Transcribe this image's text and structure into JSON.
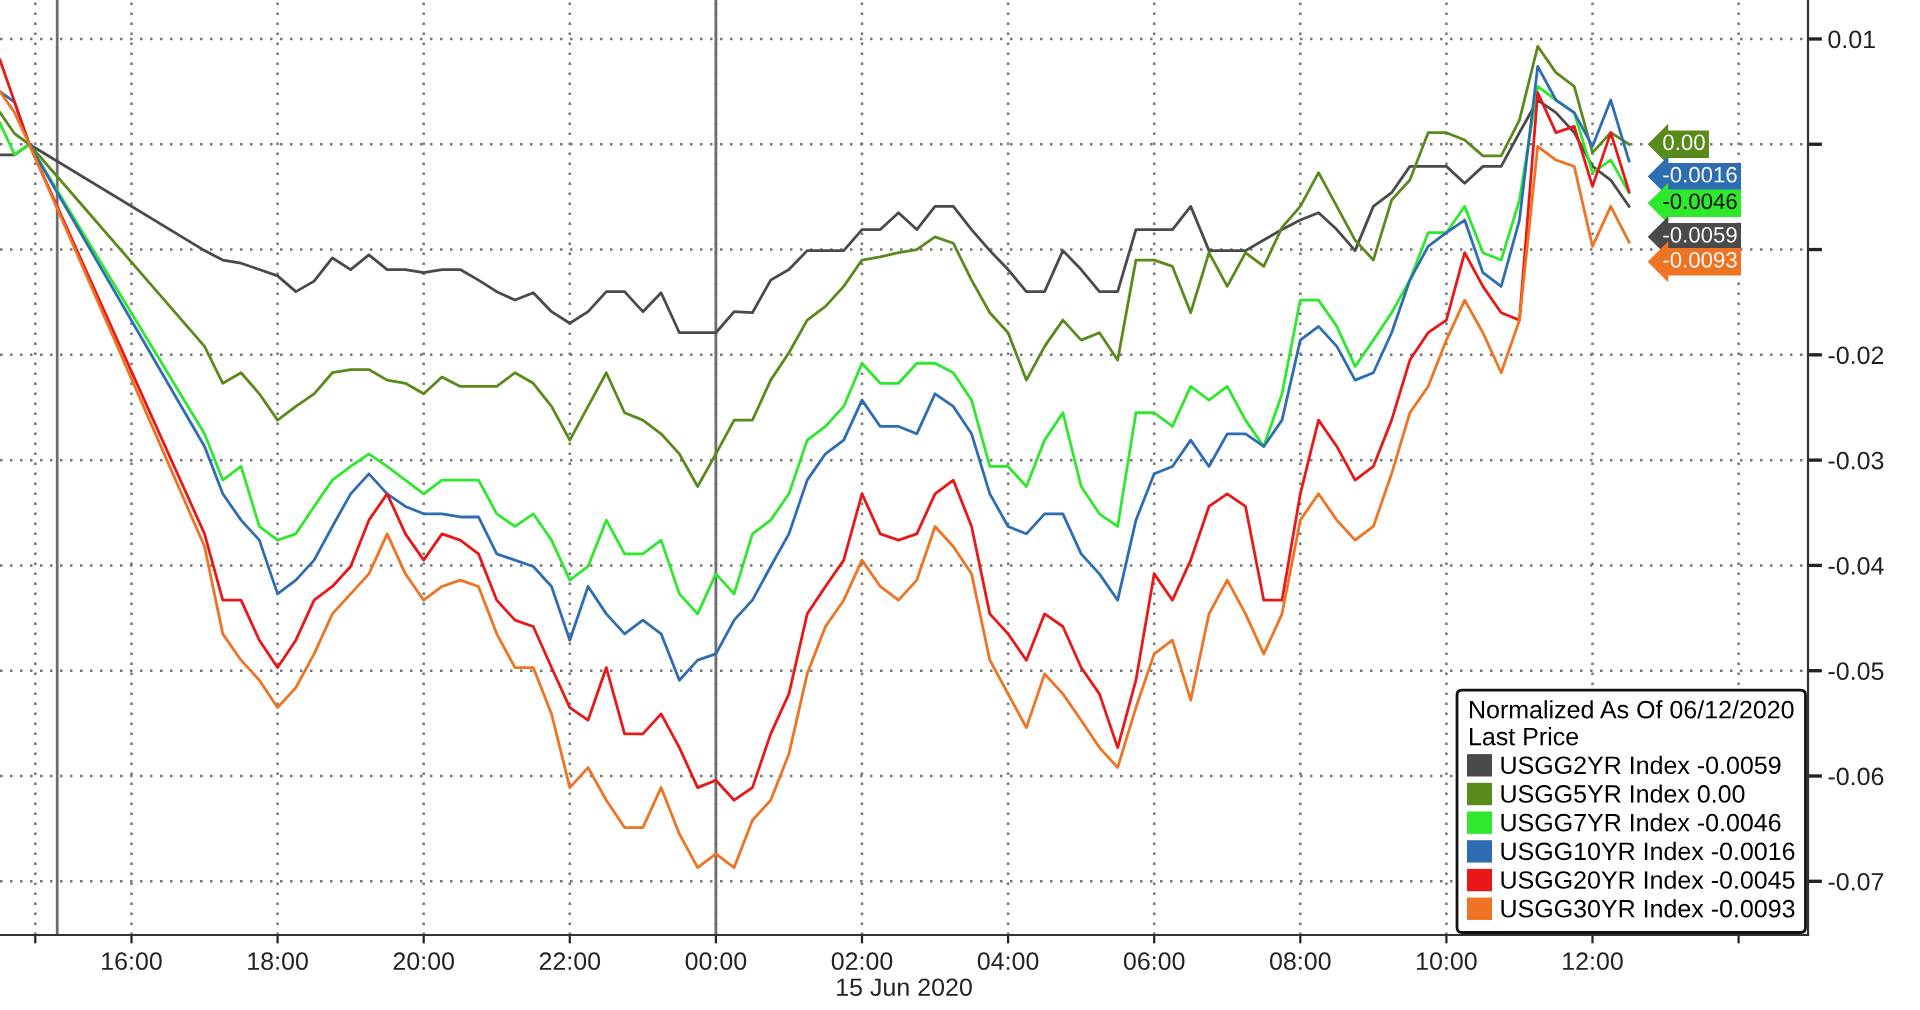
{
  "chart_data": {
    "type": "line",
    "xlabel": "15 Jun 2020",
    "legend_title": "Normalized As Of 06/12/2020\nLast Price",
    "x": [
      "2020-06-14T14:12",
      "2020-06-14T14:24",
      "2020-06-14T14:36",
      "2020-06-14T17:00",
      "2020-06-14T17:15",
      "2020-06-14T17:30",
      "2020-06-14T17:45",
      "2020-06-14T18:00",
      "2020-06-14T18:15",
      "2020-06-14T18:30",
      "2020-06-14T18:45",
      "2020-06-14T19:00",
      "2020-06-14T19:15",
      "2020-06-14T19:30",
      "2020-06-14T19:45",
      "2020-06-14T20:00",
      "2020-06-14T20:15",
      "2020-06-14T20:30",
      "2020-06-14T20:45",
      "2020-06-14T21:00",
      "2020-06-14T21:15",
      "2020-06-14T21:30",
      "2020-06-14T21:45",
      "2020-06-14T22:00",
      "2020-06-14T22:15",
      "2020-06-14T22:30",
      "2020-06-14T22:45",
      "2020-06-14T23:00",
      "2020-06-14T23:15",
      "2020-06-14T23:30",
      "2020-06-14T23:45",
      "2020-06-15T00:00",
      "2020-06-15T00:15",
      "2020-06-15T00:30",
      "2020-06-15T00:45",
      "2020-06-15T01:00",
      "2020-06-15T01:15",
      "2020-06-15T01:30",
      "2020-06-15T01:45",
      "2020-06-15T02:00",
      "2020-06-15T02:15",
      "2020-06-15T02:30",
      "2020-06-15T02:45",
      "2020-06-15T03:00",
      "2020-06-15T03:15",
      "2020-06-15T03:30",
      "2020-06-15T03:45",
      "2020-06-15T04:00",
      "2020-06-15T04:15",
      "2020-06-15T04:30",
      "2020-06-15T04:45",
      "2020-06-15T05:00",
      "2020-06-15T05:15",
      "2020-06-15T05:30",
      "2020-06-15T05:45",
      "2020-06-15T06:00",
      "2020-06-15T06:15",
      "2020-06-15T06:30",
      "2020-06-15T06:45",
      "2020-06-15T07:00",
      "2020-06-15T07:15",
      "2020-06-15T07:30",
      "2020-06-15T07:45",
      "2020-06-15T08:00",
      "2020-06-15T08:15",
      "2020-06-15T08:30",
      "2020-06-15T08:45",
      "2020-06-15T09:00",
      "2020-06-15T09:15",
      "2020-06-15T09:30",
      "2020-06-15T09:45",
      "2020-06-15T10:00",
      "2020-06-15T10:15",
      "2020-06-15T10:30",
      "2020-06-15T10:45",
      "2020-06-15T11:00",
      "2020-06-15T11:15",
      "2020-06-15T11:30",
      "2020-06-15T11:45",
      "2020-06-15T12:00",
      "2020-06-15T12:15",
      "2020-06-15T12:30"
    ],
    "series": [
      {
        "name": "USGG2YR Index -0.0059",
        "color": "#4a4a4a",
        "values": [
          -0.001,
          -0.001,
          0,
          -0.0101,
          -0.011,
          -0.0113,
          -0.0119,
          -0.0125,
          -0.014,
          -0.013,
          -0.0108,
          -0.0119,
          -0.0105,
          -0.0119,
          -0.0119,
          -0.0122,
          -0.0119,
          -0.0119,
          -0.0129,
          -0.014,
          -0.0148,
          -0.0141,
          -0.0159,
          -0.017,
          -0.0159,
          -0.014,
          -0.014,
          -0.0159,
          -0.0141,
          -0.0179,
          -0.0179,
          -0.0179,
          -0.0159,
          -0.016,
          -0.0129,
          -0.0119,
          -0.0101,
          -0.0101,
          -0.0101,
          -0.0081,
          -0.0081,
          -0.0065,
          -0.0081,
          -0.0059,
          -0.0059,
          -0.0081,
          -0.0101,
          -0.0119,
          -0.014,
          -0.014,
          -0.0101,
          -0.0119,
          -0.014,
          -0.014,
          -0.0081,
          -0.0081,
          -0.0081,
          -0.0059,
          -0.0101,
          -0.0101,
          -0.0101,
          -0.0091,
          -0.0081,
          -0.0072,
          -0.0065,
          -0.0081,
          -0.0101,
          -0.0059,
          -0.0046,
          -0.0021,
          -0.0021,
          -0.0021,
          -0.0037,
          -0.0021,
          -0.0021,
          0.0011,
          0.0042,
          0.003,
          0.0011,
          -0.0021,
          -0.0034,
          -0.0059
        ],
        "value_labels": [
          null,
          null,
          null,
          null,
          null,
          null,
          null,
          null,
          null,
          null,
          null,
          null,
          null,
          null,
          null,
          null,
          null,
          null,
          null,
          null,
          null,
          null,
          null,
          null,
          null,
          null,
          null,
          null,
          null,
          null,
          null,
          null,
          null,
          null,
          null,
          null,
          null,
          null,
          null,
          null,
          null,
          null,
          null,
          null,
          null,
          null,
          null,
          null,
          null,
          null,
          null,
          null,
          null,
          null,
          null,
          null,
          null,
          null,
          null,
          null,
          null,
          null,
          null,
          null,
          null,
          null,
          null,
          null,
          null,
          null,
          null,
          null,
          null,
          null,
          null,
          null,
          null,
          null,
          null,
          null,
          null,
          "-0.0059"
        ]
      },
      {
        "name": "USGG5YR Index 0.00",
        "color": "#5b8a1c",
        "values": [
          0.003,
          0.001,
          0,
          -0.0192,
          -0.0227,
          -0.0217,
          -0.0237,
          -0.0262,
          -0.0249,
          -0.0237,
          -0.0217,
          -0.0214,
          -0.0214,
          -0.0224,
          -0.0227,
          -0.0237,
          -0.0221,
          -0.023,
          -0.023,
          -0.023,
          -0.0217,
          -0.0227,
          -0.0249,
          -0.0281,
          -0.0249,
          -0.0217,
          -0.0255,
          -0.0262,
          -0.0275,
          -0.0294,
          -0.0325,
          -0.0294,
          -0.0262,
          -0.0262,
          -0.0224,
          -0.0198,
          -0.0167,
          -0.0154,
          -0.0135,
          -0.011,
          -0.0107,
          -0.0103,
          -0.01,
          -0.0088,
          -0.0094,
          -0.0129,
          -0.016,
          -0.0179,
          -0.0224,
          -0.0192,
          -0.0167,
          -0.0186,
          -0.0179,
          -0.0205,
          -0.011,
          -0.011,
          -0.0116,
          -0.016,
          -0.0103,
          -0.0135,
          -0.0103,
          -0.0116,
          -0.0079,
          -0.0059,
          -0.0027,
          -0.0059,
          -0.0091,
          -0.011,
          -0.0053,
          -0.0034,
          0.0011,
          0.0011,
          0.0004,
          -0.0011,
          -0.0011,
          0.0023,
          0.0093,
          0.0068,
          0.0055,
          -0.0008,
          0.0011,
          0
        ],
        "value_labels": [
          null,
          null,
          null,
          null,
          null,
          null,
          null,
          null,
          null,
          null,
          null,
          null,
          null,
          null,
          null,
          null,
          null,
          null,
          null,
          null,
          null,
          null,
          null,
          null,
          null,
          null,
          null,
          null,
          null,
          null,
          null,
          null,
          null,
          null,
          null,
          null,
          null,
          null,
          null,
          null,
          null,
          null,
          null,
          null,
          null,
          null,
          null,
          null,
          null,
          null,
          null,
          null,
          null,
          null,
          null,
          null,
          null,
          null,
          null,
          null,
          null,
          null,
          null,
          null,
          null,
          null,
          null,
          null,
          null,
          null,
          null,
          null,
          null,
          null,
          null,
          null,
          null,
          null,
          null,
          null,
          null,
          "0.00"
        ]
      },
      {
        "name": "USGG7YR Index -0.0046",
        "color": "#2ee82e",
        "values": [
          0.002,
          -0.001,
          0,
          -0.0275,
          -0.0319,
          -0.0306,
          -0.0363,
          -0.0376,
          -0.037,
          -0.0344,
          -0.0319,
          -0.0306,
          -0.0294,
          -0.0306,
          -0.0319,
          -0.0332,
          -0.0319,
          -0.0319,
          -0.0319,
          -0.0351,
          -0.0363,
          -0.0351,
          -0.0376,
          -0.0414,
          -0.0401,
          -0.0357,
          -0.0389,
          -0.0389,
          -0.0376,
          -0.0427,
          -0.0446,
          -0.0408,
          -0.0427,
          -0.037,
          -0.0357,
          -0.0332,
          -0.0281,
          -0.0268,
          -0.0249,
          -0.0208,
          -0.0227,
          -0.0227,
          -0.0208,
          -0.0208,
          -0.0217,
          -0.0243,
          -0.0306,
          -0.0306,
          -0.0325,
          -0.0281,
          -0.0255,
          -0.0325,
          -0.0351,
          -0.0363,
          -0.0255,
          -0.0255,
          -0.0268,
          -0.023,
          -0.0243,
          -0.023,
          -0.0262,
          -0.0287,
          -0.0237,
          -0.0148,
          -0.0148,
          -0.0173,
          -0.0211,
          -0.0186,
          -0.016,
          -0.0129,
          -0.0084,
          -0.0084,
          -0.0059,
          -0.0103,
          -0.011,
          -0.0053,
          0.0055,
          0.0042,
          0.003,
          -0.0027,
          -0.0015,
          -0.0046
        ],
        "value_labels": [
          null,
          null,
          null,
          null,
          null,
          null,
          null,
          null,
          null,
          null,
          null,
          null,
          null,
          null,
          null,
          null,
          null,
          null,
          null,
          null,
          null,
          null,
          null,
          null,
          null,
          null,
          null,
          null,
          null,
          null,
          null,
          null,
          null,
          null,
          null,
          null,
          null,
          null,
          null,
          null,
          null,
          null,
          null,
          null,
          null,
          null,
          null,
          null,
          null,
          null,
          null,
          null,
          null,
          null,
          null,
          null,
          null,
          null,
          null,
          null,
          null,
          null,
          null,
          null,
          null,
          null,
          null,
          null,
          null,
          null,
          null,
          null,
          null,
          null,
          null,
          null,
          null,
          null,
          null,
          null,
          null,
          "-0.0046"
        ]
      },
      {
        "name": "USGG10YR Index -0.0016",
        "color": "#2f6db3",
        "values": [
          0.005,
          0.004,
          0,
          -0.0287,
          -0.0332,
          -0.0357,
          -0.0376,
          -0.0427,
          -0.0414,
          -0.0395,
          -0.0363,
          -0.0332,
          -0.0313,
          -0.0332,
          -0.0344,
          -0.0351,
          -0.0351,
          -0.0354,
          -0.0354,
          -0.0389,
          -0.0395,
          -0.0401,
          -0.042,
          -0.0471,
          -0.042,
          -0.0446,
          -0.0465,
          -0.0452,
          -0.0465,
          -0.0509,
          -0.049,
          -0.0484,
          -0.0452,
          -0.0433,
          -0.0401,
          -0.037,
          -0.0319,
          -0.0294,
          -0.0281,
          -0.0243,
          -0.0268,
          -0.0268,
          -0.0275,
          -0.0237,
          -0.0249,
          -0.0275,
          -0.0332,
          -0.0363,
          -0.037,
          -0.0351,
          -0.0351,
          -0.0389,
          -0.0408,
          -0.0433,
          -0.0357,
          -0.0313,
          -0.0306,
          -0.0281,
          -0.0306,
          -0.0275,
          -0.0275,
          -0.0287,
          -0.0262,
          -0.0186,
          -0.0173,
          -0.0192,
          -0.0224,
          -0.0217,
          -0.0179,
          -0.0129,
          -0.0097,
          -0.0084,
          -0.0072,
          -0.0122,
          -0.0135,
          -0.0072,
          0.0074,
          0.0042,
          0.003,
          -0.0002,
          0.0042,
          -0.0016
        ],
        "value_labels": [
          null,
          null,
          null,
          null,
          null,
          null,
          null,
          null,
          null,
          null,
          null,
          null,
          null,
          null,
          null,
          null,
          null,
          null,
          null,
          null,
          null,
          null,
          null,
          null,
          null,
          null,
          null,
          null,
          null,
          null,
          null,
          null,
          null,
          null,
          null,
          null,
          null,
          null,
          null,
          null,
          null,
          null,
          null,
          null,
          null,
          null,
          null,
          null,
          null,
          null,
          null,
          null,
          null,
          null,
          null,
          null,
          null,
          null,
          null,
          null,
          null,
          null,
          null,
          null,
          null,
          null,
          null,
          null,
          null,
          null,
          null,
          null,
          null,
          null,
          null,
          null,
          null,
          null,
          null,
          null,
          null,
          "-0.0016"
        ]
      },
      {
        "name": "USGG20YR Index -0.0045",
        "color": "#e81818",
        "values": [
          0.008,
          0.004,
          0,
          -0.037,
          -0.0433,
          -0.0433,
          -0.0471,
          -0.0497,
          -0.0471,
          -0.0433,
          -0.042,
          -0.0401,
          -0.0357,
          -0.0332,
          -0.037,
          -0.0395,
          -0.037,
          -0.0376,
          -0.0389,
          -0.0433,
          -0.0452,
          -0.0458,
          -0.0497,
          -0.0535,
          -0.0547,
          -0.0497,
          -0.056,
          -0.056,
          -0.0541,
          -0.0573,
          -0.0611,
          -0.0604,
          -0.0623,
          -0.0611,
          -0.056,
          -0.0522,
          -0.0446,
          -0.042,
          -0.0395,
          -0.0332,
          -0.037,
          -0.0376,
          -0.037,
          -0.0332,
          -0.0319,
          -0.0363,
          -0.0446,
          -0.0465,
          -0.049,
          -0.0446,
          -0.0458,
          -0.0497,
          -0.0522,
          -0.0573,
          -0.0509,
          -0.0408,
          -0.0433,
          -0.0395,
          -0.0344,
          -0.0332,
          -0.0344,
          -0.0433,
          -0.0433,
          -0.0332,
          -0.0262,
          -0.0287,
          -0.0319,
          -0.0306,
          -0.0262,
          -0.0205,
          -0.0179,
          -0.0167,
          -0.0103,
          -0.0135,
          -0.016,
          -0.0167,
          0.0049,
          0.0011,
          0.0017,
          -0.004,
          0.0011,
          -0.0045
        ]
      },
      {
        "name": "USGG30YR Index -0.0093",
        "color": "#ee7322",
        "values": [
          0.005,
          0.003,
          0,
          -0.0382,
          -0.0465,
          -0.049,
          -0.0509,
          -0.0535,
          -0.0516,
          -0.0484,
          -0.0446,
          -0.0427,
          -0.0408,
          -0.037,
          -0.0408,
          -0.0433,
          -0.042,
          -0.0414,
          -0.042,
          -0.0465,
          -0.0497,
          -0.0497,
          -0.0541,
          -0.0611,
          -0.0592,
          -0.0623,
          -0.0649,
          -0.0649,
          -0.0611,
          -0.0655,
          -0.0687,
          -0.0674,
          -0.0687,
          -0.0642,
          -0.0623,
          -0.0579,
          -0.0503,
          -0.0458,
          -0.0433,
          -0.0395,
          -0.042,
          -0.0433,
          -0.0414,
          -0.0363,
          -0.0382,
          -0.0408,
          -0.049,
          -0.0522,
          -0.0554,
          -0.0503,
          -0.0522,
          -0.0547,
          -0.0573,
          -0.0592,
          -0.0535,
          -0.0484,
          -0.0471,
          -0.0528,
          -0.0446,
          -0.0414,
          -0.0446,
          -0.0484,
          -0.0446,
          -0.0357,
          -0.0332,
          -0.0357,
          -0.0376,
          -0.0363,
          -0.0313,
          -0.0255,
          -0.023,
          -0.0186,
          -0.0148,
          -0.0179,
          -0.0217,
          -0.0167,
          -0.0002,
          -0.0015,
          -0.0021,
          -0.0097,
          -0.0059,
          -0.0093
        ],
        "value_labels": [
          null,
          null,
          null,
          null,
          null,
          null,
          null,
          null,
          null,
          null,
          null,
          null,
          null,
          null,
          null,
          null,
          null,
          null,
          null,
          null,
          null,
          null,
          null,
          null,
          null,
          null,
          null,
          null,
          null,
          null,
          null,
          null,
          null,
          null,
          null,
          null,
          null,
          null,
          null,
          null,
          null,
          null,
          null,
          null,
          null,
          null,
          null,
          null,
          null,
          null,
          null,
          null,
          null,
          null,
          null,
          null,
          null,
          null,
          null,
          null,
          null,
          null,
          null,
          null,
          null,
          null,
          null,
          null,
          null,
          null,
          null,
          null,
          null,
          null,
          null,
          null,
          null,
          null,
          null,
          null,
          null,
          "-0.0093"
        ]
      }
    ],
    "xlim": [
      "2020-06-14T14:12",
      "2020-06-15T14:57"
    ],
    "xticks": [
      {
        "value": "2020-06-14T14:41",
        "label": null
      },
      {
        "value": "2020-06-14T16:00",
        "label": "16:00"
      },
      {
        "value": "2020-06-14T18:00",
        "label": "18:00"
      },
      {
        "value": "2020-06-14T20:00",
        "label": "20:00"
      },
      {
        "value": "2020-06-14T22:00",
        "label": "22:00"
      },
      {
        "value": "2020-06-15T00:00",
        "label": "00:00"
      },
      {
        "value": "2020-06-15T02:00",
        "label": "02:00"
      },
      {
        "value": "2020-06-15T04:00",
        "label": "04:00"
      },
      {
        "value": "2020-06-15T06:00",
        "label": "06:00"
      },
      {
        "value": "2020-06-15T08:00",
        "label": "08:00"
      },
      {
        "value": "2020-06-15T10:00",
        "label": "10:00"
      },
      {
        "value": "2020-06-15T12:00",
        "label": "12:00"
      },
      {
        "value": "2020-06-15T14:00",
        "label": null
      }
    ],
    "ylim": [
      -0.0751,
      0.0137
    ],
    "yticks": [
      0.01,
      {
        "value": 0,
        "label": null
      },
      {
        "value": -0.01,
        "label": null
      },
      -0.02,
      -0.03,
      -0.04,
      -0.05,
      -0.06,
      -0.07
    ],
    "ref_lines": [
      {
        "axis": "x",
        "value": "2020-06-14T14:59",
        "color": "#6e6e6e"
      },
      {
        "axis": "x",
        "value": "2020-06-15T00:00",
        "color": "#6e6e6e"
      }
    ],
    "grid": true,
    "legend": "bottom right"
  }
}
